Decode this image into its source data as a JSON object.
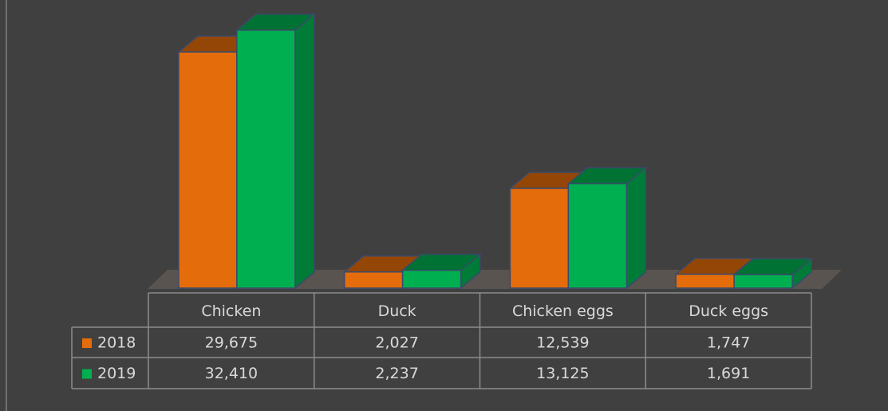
{
  "chart_data": {
    "type": "bar3d",
    "categories": [
      "Chicken",
      "Duck",
      "Chicken eggs",
      "Duck eggs"
    ],
    "series": [
      {
        "name": "2018",
        "color": "#e46c0a",
        "values": [
          29675,
          2027,
          12539,
          1747
        ],
        "value_labels": [
          "29,675",
          "2,027",
          "12,539",
          "1,747"
        ]
      },
      {
        "name": "2019",
        "color": "#00b050",
        "values": [
          32410,
          2237,
          13125,
          1691
        ],
        "value_labels": [
          "32,410",
          "2,237",
          "13,125",
          "1,691"
        ]
      }
    ],
    "data_table": true
  }
}
